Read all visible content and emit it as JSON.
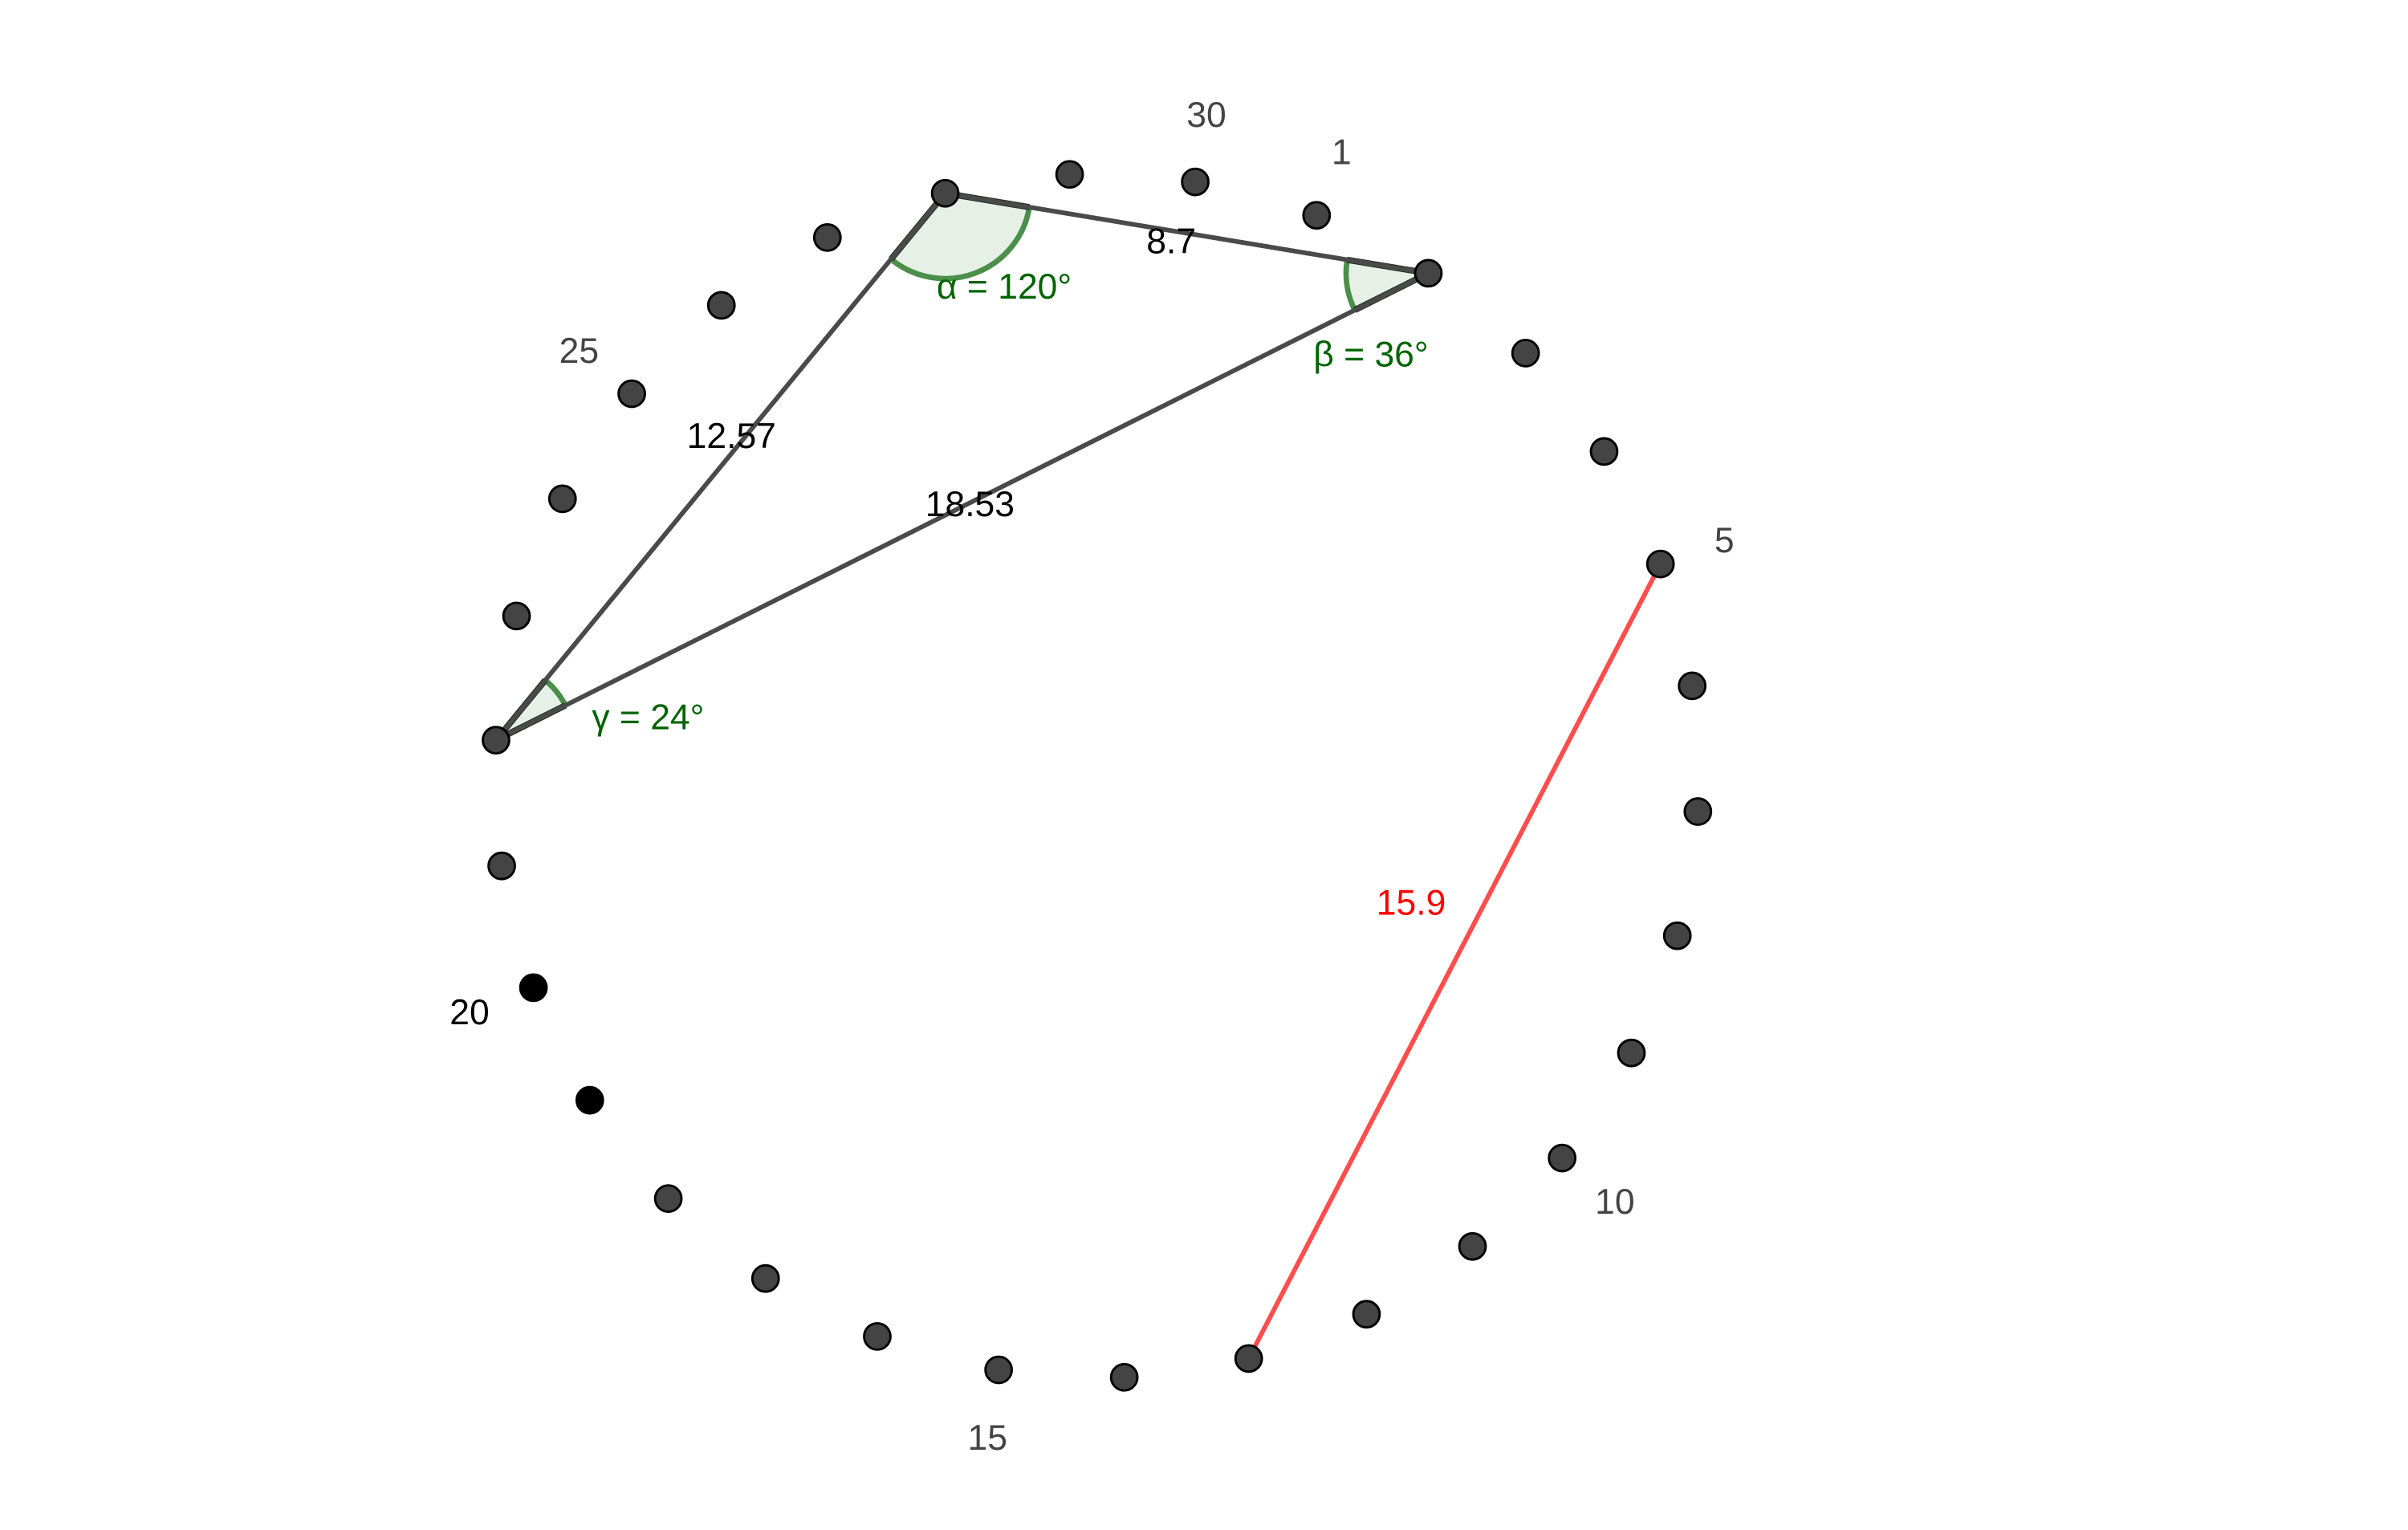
{
  "colors": {
    "point_fill": "#444444",
    "point_fill_highlight": "#000000",
    "point_stroke": "#000000",
    "segment": "#4a4a4a",
    "segment_highlight": "#ff4d4d",
    "segment_highlight_label": "#ff0000",
    "angle": "#006400",
    "angle_fill": "#e6f0e6",
    "point_label": "#444444",
    "length_label": "#000000"
  },
  "circle_points": {
    "count": 30,
    "labels": [
      {
        "index": 1,
        "text": "1"
      },
      {
        "index": 5,
        "text": "5"
      },
      {
        "index": 10,
        "text": "10"
      },
      {
        "index": 15,
        "text": "15"
      },
      {
        "index": 20,
        "text": "20",
        "highlight": true
      },
      {
        "index": 25,
        "text": "25"
      },
      {
        "index": 30,
        "text": "30"
      }
    ],
    "highlighted_points": [
      19,
      20
    ]
  },
  "triangle": {
    "vertices": [
      28,
      2,
      22
    ],
    "sides": [
      {
        "from": 28,
        "to": 2,
        "length": "8.7"
      },
      {
        "from": 28,
        "to": 22,
        "length": "12.57"
      },
      {
        "from": 2,
        "to": 22,
        "length": "18.53"
      }
    ],
    "angles": [
      {
        "vertex": 28,
        "label": "α = 120°"
      },
      {
        "vertex": 2,
        "label": "β = 36°"
      },
      {
        "vertex": 22,
        "label": "γ = 24°"
      }
    ]
  },
  "chord": {
    "from": 5,
    "to": 13,
    "length": "15.9"
  }
}
